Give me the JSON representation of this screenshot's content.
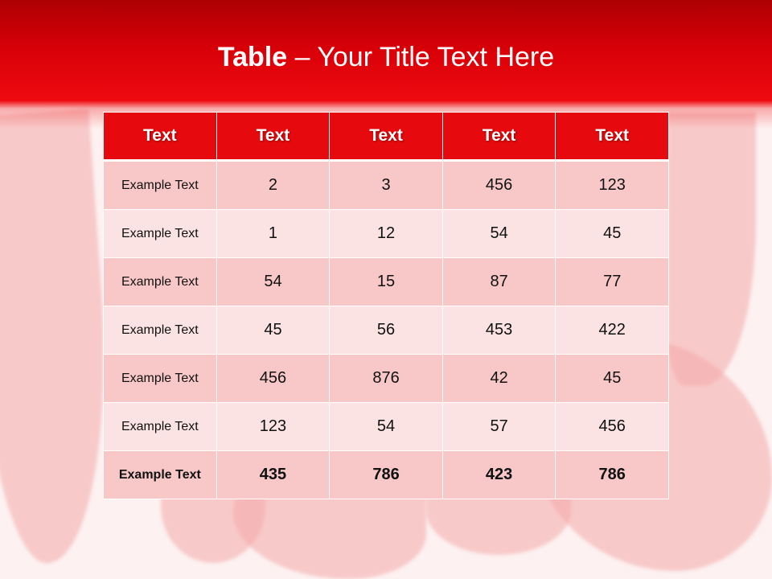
{
  "slide": {
    "title_bold": "Table",
    "title_rest": " – Your Title Text Here"
  },
  "table": {
    "headers": [
      "Text",
      "Text",
      "Text",
      "Text",
      "Text"
    ],
    "rows": [
      [
        "Example Text",
        "2",
        "3",
        "456",
        "123"
      ],
      [
        "Example Text",
        "1",
        "12",
        "54",
        "45"
      ],
      [
        "Example Text",
        "54",
        "15",
        "87",
        "77"
      ],
      [
        "Example Text",
        "45",
        "56",
        "453",
        "422"
      ],
      [
        "Example Text",
        "456",
        "876",
        "42",
        "45"
      ],
      [
        "Example Text",
        "123",
        "54",
        "57",
        "456"
      ],
      [
        "Example Text",
        "435",
        "786",
        "423",
        "786"
      ]
    ],
    "last_row_bold": true
  },
  "colors": {
    "header": "#e60a0e",
    "row_odd": "#f8c8c9",
    "row_even": "#fbe3e3",
    "band": "#d80008"
  }
}
